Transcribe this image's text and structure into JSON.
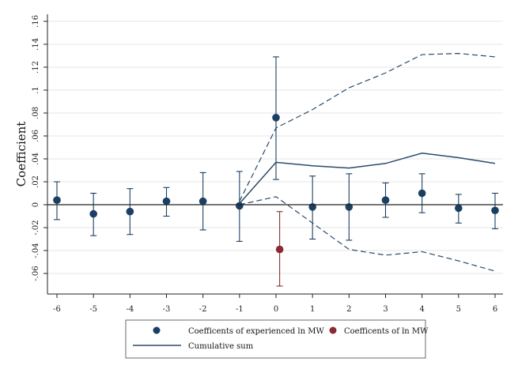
{
  "chart_data": {
    "type": "scatter",
    "ylabel": "Coefficient",
    "xlabel": "",
    "xlim": [
      -6.3,
      6.3
    ],
    "ylim": [
      -0.08,
      0.165
    ],
    "x_ticks": [
      -6,
      -5,
      -4,
      -3,
      -2,
      -1,
      0,
      1,
      2,
      3,
      4,
      5,
      6
    ],
    "y_ticks": [
      -0.06,
      -0.04,
      -0.02,
      0,
      0.02,
      0.04,
      0.06,
      0.08,
      0.1,
      0.12,
      0.14,
      0.16
    ],
    "y_tick_labels": [
      "-.06",
      "-.04",
      "-.02",
      "0",
      ".02",
      ".04",
      ".06",
      ".08",
      ".1",
      ".12",
      ".14",
      ".16"
    ],
    "grid": true,
    "colors": {
      "experienced": "#1b3f63",
      "mw": "#8b2a35",
      "cumulative": "#2b4a6a",
      "grid": "#e6e6e6"
    },
    "series": [
      {
        "name": "Coefficents of experienced ln MW",
        "marker": "dot",
        "points": [
          {
            "x": -6,
            "y": 0.004,
            "lo": -0.013,
            "hi": 0.02
          },
          {
            "x": -5,
            "y": -0.008,
            "lo": -0.027,
            "hi": 0.01
          },
          {
            "x": -4,
            "y": -0.006,
            "lo": -0.026,
            "hi": 0.014
          },
          {
            "x": -3,
            "y": 0.003,
            "lo": -0.01,
            "hi": 0.015
          },
          {
            "x": -2,
            "y": 0.003,
            "lo": -0.022,
            "hi": 0.028
          },
          {
            "x": -1,
            "y": -0.001,
            "lo": -0.032,
            "hi": 0.029
          },
          {
            "x": 0,
            "y": 0.076,
            "lo": 0.022,
            "hi": 0.129
          },
          {
            "x": 1,
            "y": -0.002,
            "lo": -0.03,
            "hi": 0.025
          },
          {
            "x": 2,
            "y": -0.002,
            "lo": -0.031,
            "hi": 0.027
          },
          {
            "x": 3,
            "y": 0.004,
            "lo": -0.011,
            "hi": 0.019
          },
          {
            "x": 4,
            "y": 0.01,
            "lo": -0.007,
            "hi": 0.027
          },
          {
            "x": 5,
            "y": -0.003,
            "lo": -0.016,
            "hi": 0.009
          },
          {
            "x": 6,
            "y": -0.005,
            "lo": -0.021,
            "hi": 0.01
          }
        ]
      },
      {
        "name": "Coefficents of ln MW",
        "marker": "dot",
        "points": [
          {
            "x": 0.1,
            "y": -0.039,
            "lo": -0.071,
            "hi": -0.006
          }
        ]
      },
      {
        "name": "Cumulative sum",
        "marker": "line",
        "x": [
          -1,
          0,
          1,
          2,
          3,
          4,
          5,
          6
        ],
        "values": [
          0.001,
          0.037,
          0.034,
          0.032,
          0.036,
          0.045,
          0.041,
          0.036
        ],
        "upper": [
          0.003,
          0.067,
          0.083,
          0.102,
          0.115,
          0.131,
          0.132,
          0.129
        ],
        "lower": [
          0.0,
          0.007,
          -0.016,
          -0.039,
          -0.044,
          -0.041,
          -0.049,
          -0.058
        ]
      }
    ],
    "legend": {
      "placement": "bottom",
      "entries": [
        "Coefficents of experienced ln MW",
        "Coefficents of ln MW",
        "Cumulative sum"
      ]
    }
  }
}
